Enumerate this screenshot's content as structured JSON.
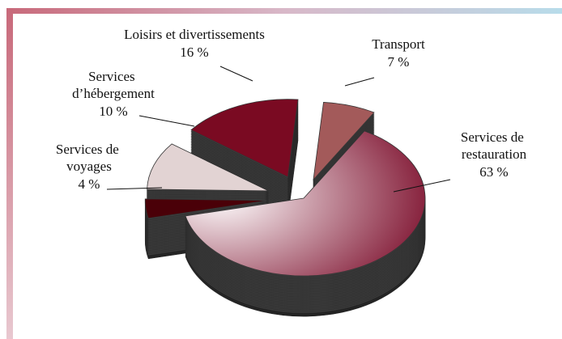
{
  "chart_data": {
    "type": "pie3d",
    "categories": [
      "Services de restauration",
      "Services de voyages",
      "Services d’hébergement",
      "Loisirs et divertissements",
      "Transport"
    ],
    "values": [
      63,
      4,
      10,
      16,
      7
    ],
    "value_labels": [
      "63 %",
      "4 %",
      "10 %",
      "16 %",
      "7 %"
    ],
    "colors": [
      "#7a0a28",
      "#4a0008",
      "#e2d3d3",
      "#7a0a22",
      "#a35a5a"
    ]
  }
}
